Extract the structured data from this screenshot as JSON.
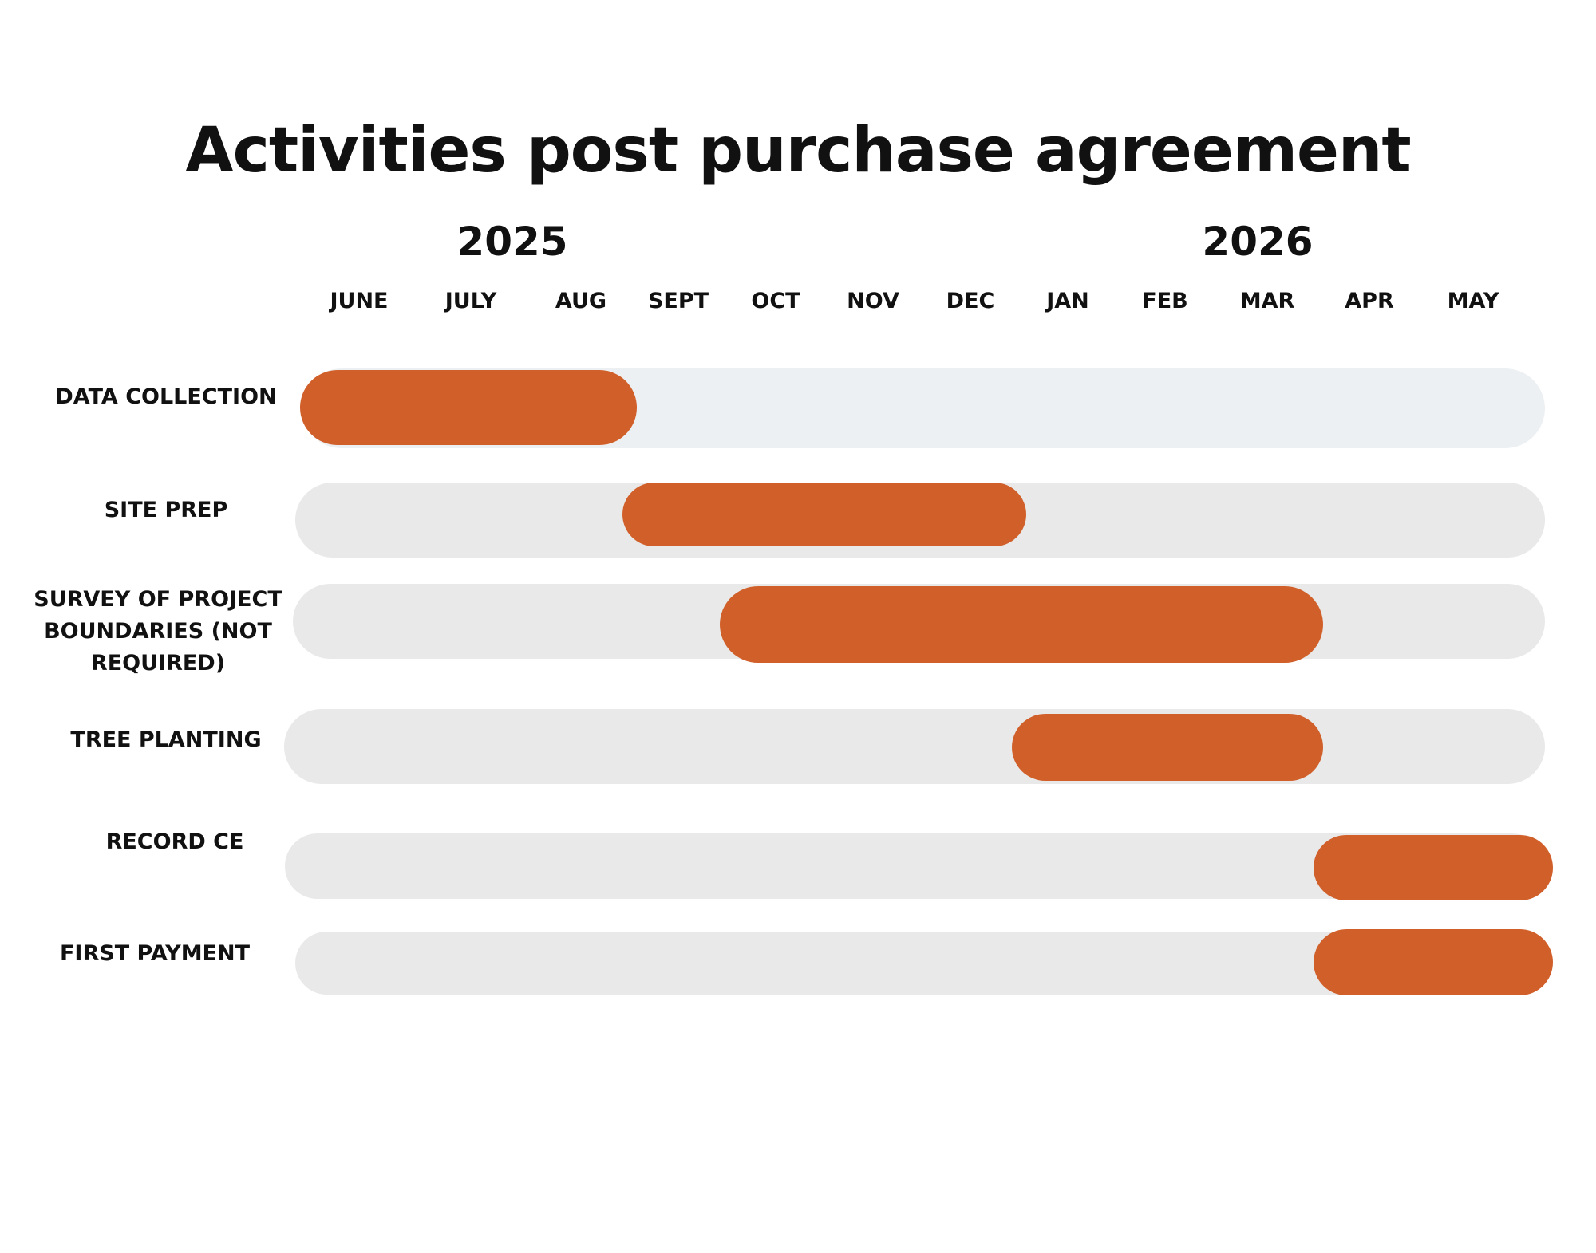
{
  "title": "Activities post purchase agreement",
  "years": [
    "2025",
    "2026"
  ],
  "months": [
    "JUNE",
    "JULY",
    "AUG",
    "SEPT",
    "OCT",
    "NOV",
    "DEC",
    "JAN",
    "FEB",
    "MAR",
    "APR",
    "MAY"
  ],
  "colors": {
    "bar": "#d15f29",
    "track_first": "#edf0f2",
    "track": "#e8e9e8"
  },
  "chart_data": {
    "type": "gantt",
    "title": "Activities post purchase agreement",
    "timeline": [
      "JUNE 2025",
      "JULY 2025",
      "AUG 2025",
      "SEPT 2025",
      "OCT 2025",
      "NOV 2025",
      "DEC 2025",
      "JAN 2026",
      "FEB 2026",
      "MAR 2026",
      "APR 2026",
      "MAY 2026"
    ],
    "tasks": [
      {
        "label": "DATA COLLECTION",
        "start": "JUNE 2025",
        "end": "AUG 2025"
      },
      {
        "label": "SITE PREP",
        "start": "SEPT 2025",
        "end": "DEC 2025"
      },
      {
        "label": "SURVEY OF PROJECT\nBOUNDARIES  (NOT\nREQUIRED)",
        "start": "OCT 2025",
        "end": "MAR 2026"
      },
      {
        "label": "TREE PLANTING",
        "start": "JAN 2026",
        "end": "MAR 2026"
      },
      {
        "label": "RECORD CE",
        "start": "APR 2026",
        "end": "MAY 2026"
      },
      {
        "label": "FIRST PAYMENT",
        "start": "APR 2026",
        "end": "MAY 2026"
      }
    ]
  }
}
